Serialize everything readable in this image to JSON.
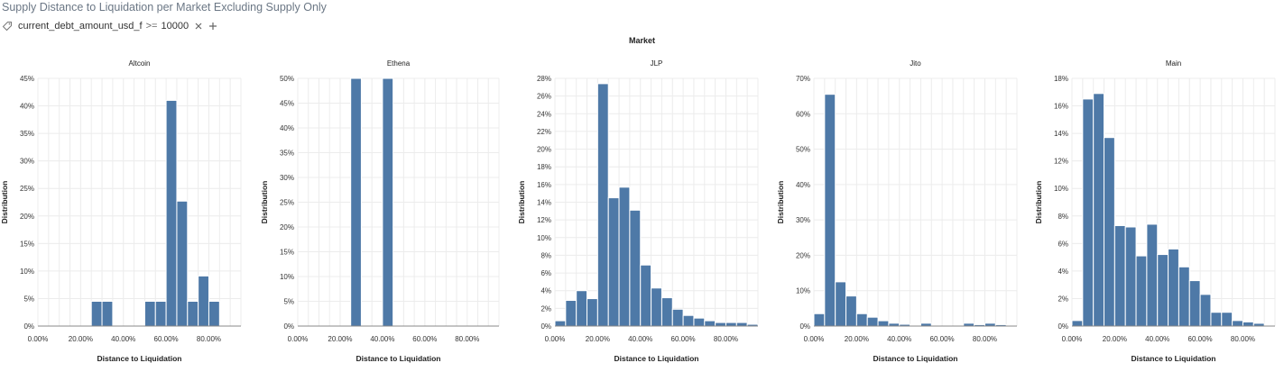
{
  "page": {
    "title": "Supply Distance to Liquidation per Market Excluding Supply Only"
  },
  "filter": {
    "field": "current_debt_amount_usd_f",
    "operator": ">=",
    "value": "10000"
  },
  "facet_label": "Market",
  "colors": {
    "bar": "#4e79a7",
    "bar_stroke": "#ffffff",
    "grid": "#ececec",
    "axis": "#888888",
    "text": "#333333"
  },
  "chart_data": [
    {
      "type": "bar",
      "title": "Altcoin",
      "xlabel": "Distance to Liquidation",
      "ylabel": "Distance to Liquidation",
      "ylabel_text": "Distribution",
      "bin_width": 0.05,
      "x_domain": [
        0,
        0.95
      ],
      "xticks": [
        0,
        0.2,
        0.4,
        0.6,
        0.8
      ],
      "xtick_labels": [
        "0.00%",
        "20.00%",
        "40.00%",
        "60.00%",
        "80.00%"
      ],
      "ylim": [
        0,
        45
      ],
      "yticks": [
        0,
        5,
        10,
        15,
        20,
        25,
        30,
        35,
        40,
        45
      ],
      "ytick_labels": [
        "0%",
        "5%",
        "10%",
        "15%",
        "20%",
        "25%",
        "30%",
        "35%",
        "40%",
        "45%"
      ],
      "bins": [
        {
          "x": 0.25,
          "y": 4.5
        },
        {
          "x": 0.3,
          "y": 4.5
        },
        {
          "x": 0.5,
          "y": 4.5
        },
        {
          "x": 0.55,
          "y": 4.5
        },
        {
          "x": 0.6,
          "y": 41
        },
        {
          "x": 0.65,
          "y": 22.7
        },
        {
          "x": 0.7,
          "y": 4.5
        },
        {
          "x": 0.75,
          "y": 9.1
        },
        {
          "x": 0.8,
          "y": 4.5
        }
      ]
    },
    {
      "type": "bar",
      "title": "Ethena",
      "xlabel": "Distance to Liquidation",
      "ylabel_text": "Distribution",
      "bin_width": 0.05,
      "x_domain": [
        0,
        0.95
      ],
      "xticks": [
        0,
        0.2,
        0.4,
        0.6,
        0.8
      ],
      "xtick_labels": [
        "0.00%",
        "20.00%",
        "40.00%",
        "60.00%",
        "80.00%"
      ],
      "ylim": [
        0,
        50
      ],
      "yticks": [
        0,
        5,
        10,
        15,
        20,
        25,
        30,
        35,
        40,
        45,
        50
      ],
      "ytick_labels": [
        "0%",
        "5%",
        "10%",
        "15%",
        "20%",
        "25%",
        "30%",
        "35%",
        "40%",
        "45%",
        "50%"
      ],
      "bins": [
        {
          "x": 0.25,
          "y": 50
        },
        {
          "x": 0.4,
          "y": 50
        }
      ]
    },
    {
      "type": "bar",
      "title": "JLP",
      "xlabel": "Distance to Liquidation",
      "ylabel_text": "Distribution",
      "bin_width": 0.05,
      "x_domain": [
        0,
        0.95
      ],
      "xticks": [
        0,
        0.2,
        0.4,
        0.6,
        0.8
      ],
      "xtick_labels": [
        "0.00%",
        "20.00%",
        "40.00%",
        "60.00%",
        "80.00%"
      ],
      "ylim": [
        0,
        28
      ],
      "yticks": [
        0,
        2,
        4,
        6,
        8,
        10,
        12,
        14,
        16,
        18,
        20,
        22,
        24,
        26,
        28
      ],
      "ytick_labels": [
        "0%",
        "2%",
        "4%",
        "6%",
        "8%",
        "10%",
        "12%",
        "14%",
        "16%",
        "18%",
        "20%",
        "22%",
        "24%",
        "26%",
        "28%"
      ],
      "bins": [
        {
          "x": 0.0,
          "y": 0.6
        },
        {
          "x": 0.05,
          "y": 2.9
        },
        {
          "x": 0.1,
          "y": 4.0
        },
        {
          "x": 0.15,
          "y": 3.1
        },
        {
          "x": 0.2,
          "y": 27.4
        },
        {
          "x": 0.25,
          "y": 14.5
        },
        {
          "x": 0.3,
          "y": 15.7
        },
        {
          "x": 0.35,
          "y": 13.1
        },
        {
          "x": 0.4,
          "y": 6.9
        },
        {
          "x": 0.45,
          "y": 4.3
        },
        {
          "x": 0.5,
          "y": 3.2
        },
        {
          "x": 0.55,
          "y": 1.9
        },
        {
          "x": 0.6,
          "y": 1.2
        },
        {
          "x": 0.65,
          "y": 0.9
        },
        {
          "x": 0.7,
          "y": 0.6
        },
        {
          "x": 0.75,
          "y": 0.4
        },
        {
          "x": 0.8,
          "y": 0.4
        },
        {
          "x": 0.85,
          "y": 0.4
        },
        {
          "x": 0.9,
          "y": 0.2
        }
      ]
    },
    {
      "type": "bar",
      "title": "Jito",
      "xlabel": "Distance to Liquidation",
      "ylabel_text": "Distribution",
      "bin_width": 0.05,
      "x_domain": [
        0,
        0.95
      ],
      "xticks": [
        0,
        0.2,
        0.4,
        0.6,
        0.8
      ],
      "xtick_labels": [
        "0.00%",
        "20.00%",
        "40.00%",
        "60.00%",
        "80.00%"
      ],
      "ylim": [
        0,
        70
      ],
      "yticks": [
        0,
        10,
        20,
        30,
        40,
        50,
        60,
        70
      ],
      "ytick_labels": [
        "0%",
        "10%",
        "20%",
        "30%",
        "40%",
        "50%",
        "60%",
        "70%"
      ],
      "bins": [
        {
          "x": 0.0,
          "y": 3.5
        },
        {
          "x": 0.05,
          "y": 65.5
        },
        {
          "x": 0.1,
          "y": 12.5
        },
        {
          "x": 0.15,
          "y": 8.5
        },
        {
          "x": 0.2,
          "y": 3.5
        },
        {
          "x": 0.25,
          "y": 2.5
        },
        {
          "x": 0.3,
          "y": 1.5
        },
        {
          "x": 0.35,
          "y": 0.8
        },
        {
          "x": 0.4,
          "y": 0.5
        },
        {
          "x": 0.5,
          "y": 0.8
        },
        {
          "x": 0.7,
          "y": 0.8
        },
        {
          "x": 0.75,
          "y": 0.4
        },
        {
          "x": 0.8,
          "y": 0.8
        },
        {
          "x": 0.85,
          "y": 0.4
        }
      ]
    },
    {
      "type": "bar",
      "title": "Main",
      "xlabel": "Distance to Liquidation",
      "ylabel_text": "Distribution",
      "bin_width": 0.05,
      "x_domain": [
        0,
        0.95
      ],
      "xticks": [
        0,
        0.2,
        0.4,
        0.6,
        0.8
      ],
      "xtick_labels": [
        "0.00%",
        "20.00%",
        "40.00%",
        "60.00%",
        "80.00%"
      ],
      "ylim": [
        0,
        18
      ],
      "yticks": [
        0,
        2,
        4,
        6,
        8,
        10,
        12,
        14,
        16,
        18
      ],
      "ytick_labels": [
        "0%",
        "2%",
        "4%",
        "6%",
        "8%",
        "10%",
        "12%",
        "14%",
        "16%",
        "18%"
      ],
      "bins": [
        {
          "x": 0.0,
          "y": 0.4
        },
        {
          "x": 0.05,
          "y": 16.5
        },
        {
          "x": 0.1,
          "y": 16.9
        },
        {
          "x": 0.15,
          "y": 13.7
        },
        {
          "x": 0.2,
          "y": 7.3
        },
        {
          "x": 0.25,
          "y": 7.2
        },
        {
          "x": 0.3,
          "y": 5.1
        },
        {
          "x": 0.35,
          "y": 7.4
        },
        {
          "x": 0.4,
          "y": 5.2
        },
        {
          "x": 0.45,
          "y": 5.6
        },
        {
          "x": 0.5,
          "y": 4.3
        },
        {
          "x": 0.55,
          "y": 3.3
        },
        {
          "x": 0.6,
          "y": 2.3
        },
        {
          "x": 0.65,
          "y": 1.0
        },
        {
          "x": 0.7,
          "y": 1.0
        },
        {
          "x": 0.75,
          "y": 0.4
        },
        {
          "x": 0.8,
          "y": 0.3
        },
        {
          "x": 0.85,
          "y": 0.2
        }
      ]
    }
  ]
}
